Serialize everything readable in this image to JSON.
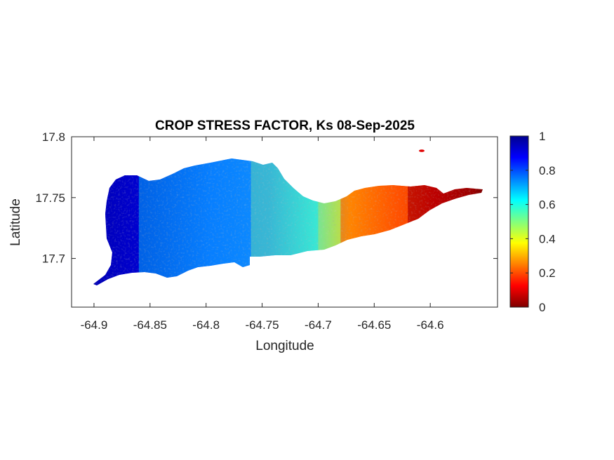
{
  "chart_data": {
    "type": "heatmap",
    "title": "CROP STRESS FACTOR, Ks  08-Sep-2025",
    "xlabel": "Longitude",
    "ylabel": "Latitude",
    "xlim": [
      -64.92,
      -64.54
    ],
    "ylim": [
      17.66,
      17.8
    ],
    "xticks": [
      -64.9,
      -64.85,
      -64.8,
      -64.75,
      -64.7,
      -64.65,
      -64.6
    ],
    "xtick_labels": [
      "-64.9",
      "-64.85",
      "-64.8",
      "-64.75",
      "-64.7",
      "-64.65",
      "-64.6"
    ],
    "yticks": [
      17.7,
      17.75,
      17.8
    ],
    "ytick_labels": [
      "17.7",
      "17.75",
      "17.8"
    ],
    "colorbar": {
      "colormap": "jet",
      "clim": [
        0,
        1
      ],
      "ticks": [
        0,
        0.2,
        0.4,
        0.6,
        0.8,
        1
      ],
      "tick_labels": [
        "0",
        "0.2",
        "0.4",
        "0.6",
        "0.8",
        "1"
      ],
      "colors": [
        "#00008f",
        "#0000ff",
        "#00ffff",
        "#ffff00",
        "#ff0000",
        "#800000"
      ]
    },
    "grid": false,
    "zones": [
      {
        "lon_range": [
          -64.9,
          -64.86
        ],
        "ks": 0.92
      },
      {
        "lon_range": [
          -64.86,
          -64.76
        ],
        "ks": 0.7
      },
      {
        "lon_range": [
          -64.76,
          -64.7
        ],
        "ks": 0.55
      },
      {
        "lon_range": [
          -64.7,
          -64.68
        ],
        "ks": 0.45
      },
      {
        "lon_range": [
          -64.68,
          -64.62
        ],
        "ks": 0.22
      },
      {
        "lon_range": [
          -64.62,
          -64.56
        ],
        "ks": 0.03
      }
    ]
  }
}
